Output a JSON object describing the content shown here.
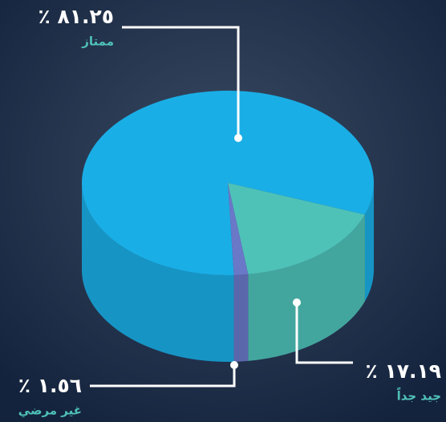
{
  "chart_data": {
    "type": "pie",
    "categories": [
      "ممتاز",
      "جيد جداً",
      "غير مرضي"
    ],
    "values": [
      81.25,
      17.19,
      1.56
    ],
    "value_labels": [
      "٪ ٨١.٢٥",
      "٪ ١٧.١٩",
      "٪ ١.٥٦"
    ],
    "colors": [
      "#1aaee6",
      "#4fc2b8",
      "#6a78c8"
    ]
  }
}
